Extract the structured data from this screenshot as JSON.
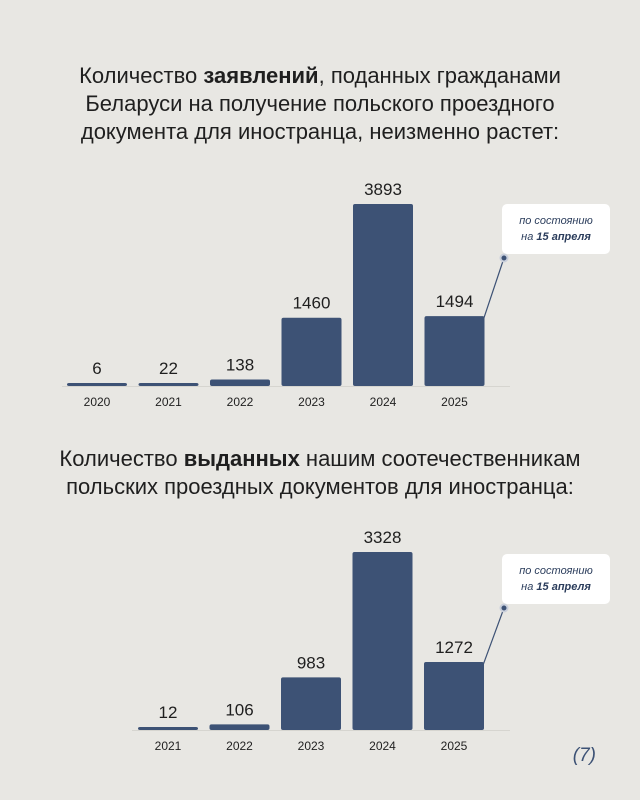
{
  "headings": [
    {
      "lines": [
        [
          {
            "text": "Количество ",
            "bold": false
          },
          {
            "text": "заявлений",
            "bold": true
          },
          {
            "text": ", поданных гражданами",
            "bold": false
          }
        ],
        [
          {
            "text": "Беларуси на получение польского проездного",
            "bold": false
          }
        ],
        [
          {
            "text": "документа для иностранца, неизменно растет:",
            "bold": false
          }
        ]
      ]
    },
    {
      "lines": [
        [
          {
            "text": "Количество ",
            "bold": false
          },
          {
            "text": "выданных",
            "bold": true
          },
          {
            "text": " нашим соотечественникам",
            "bold": false
          }
        ],
        [
          {
            "text": "польских проездных документов для иностранца:",
            "bold": false
          }
        ]
      ]
    }
  ],
  "colors": {
    "bar": "#3d5275",
    "background": "#e8e7e3",
    "note_box": "#ffffff"
  },
  "chart_data": [
    {
      "type": "bar",
      "categories": [
        "2020",
        "2021",
        "2022",
        "2023",
        "2024",
        "2025"
      ],
      "values": [
        6,
        22,
        138,
        1460,
        3893,
        1494
      ],
      "ylim": [
        0,
        3893
      ],
      "grid": false,
      "note": {
        "prefix": "по состоянию",
        "line2_prefix": "на ",
        "line2_bold": "15 апреля",
        "points_to": "2025"
      }
    },
    {
      "type": "bar",
      "categories": [
        "2021",
        "2022",
        "2023",
        "2024",
        "2025"
      ],
      "values": [
        12,
        106,
        983,
        3328,
        1272
      ],
      "ylim": [
        0,
        3328
      ],
      "grid": false,
      "note": {
        "prefix": "по состоянию",
        "line2_prefix": "на ",
        "line2_bold": "15 апреля",
        "points_to": "2025"
      }
    }
  ],
  "page_number": "(7)"
}
